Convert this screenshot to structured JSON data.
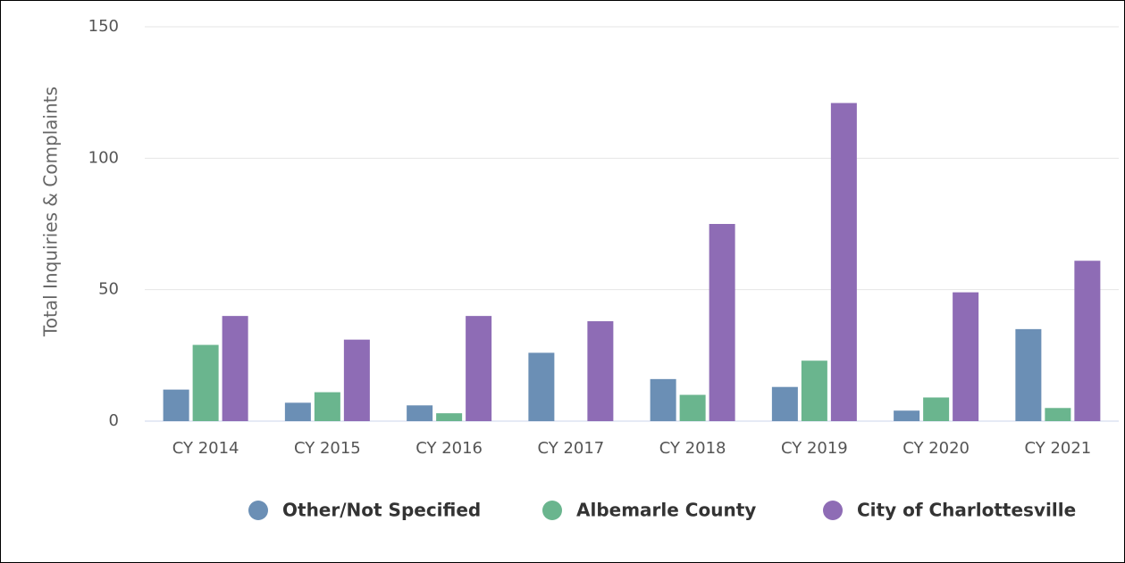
{
  "chart_data": {
    "type": "bar",
    "y_label": "Total Inquiries & Complaints",
    "categories": [
      "CY 2014",
      "CY 2015",
      "CY 2016",
      "CY 2017",
      "CY 2018",
      "CY 2019",
      "CY 2020",
      "CY 2021"
    ],
    "series": [
      {
        "name": "Other/Not Specified",
        "color": "#6b8fb5",
        "values": [
          12,
          7,
          6,
          26,
          16,
          13,
          4,
          35
        ]
      },
      {
        "name": "Albemarle County",
        "color": "#6ab58e",
        "values": [
          29,
          11,
          3,
          0,
          10,
          23,
          9,
          5
        ]
      },
      {
        "name": "City of Charlottesville",
        "color": "#8e6cb5",
        "values": [
          40,
          31,
          40,
          38,
          75,
          121,
          49,
          61
        ]
      }
    ],
    "ylim": [
      0,
      150
    ],
    "yticks": [
      0,
      50,
      100,
      150
    ],
    "grid": true,
    "legend": "bottom-right"
  }
}
